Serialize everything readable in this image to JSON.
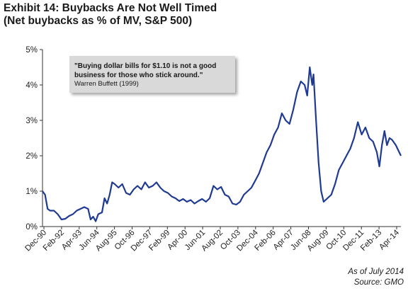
{
  "chart_data": {
    "type": "line",
    "title": "Exhibit 14: Buybacks Are Not Well Timed",
    "subtitle": "(Net buybacks as % of MV, S&P 500)",
    "xlabel": "",
    "ylabel": "",
    "x_tick_labels": [
      "Dec-90",
      "Feb-92",
      "Apr-93",
      "Jun-94",
      "Aug-95",
      "Oct-96",
      "Dec-97",
      "Feb-99",
      "Apr-00",
      "Jun-01",
      "Aug-02",
      "Oct-03",
      "Dec-04",
      "Feb-06",
      "Apr-07",
      "Jun-08",
      "Aug-09",
      "Oct-10",
      "Dec-11",
      "Feb-13",
      "Apr-14"
    ],
    "xlim": [
      "1990-12",
      "2014-07"
    ],
    "ylim": [
      0,
      5
    ],
    "y_tick_labels": [
      "0%",
      "1%",
      "2%",
      "3%",
      "4%",
      "5%"
    ],
    "y_ticks": [
      0,
      1,
      2,
      3,
      4,
      5
    ],
    "grid": false,
    "series": [
      {
        "color": "#1f3a93",
        "points": [
          [
            "1990-12",
            1.0
          ],
          [
            "1991-02",
            0.9
          ],
          [
            "1991-04",
            0.5
          ],
          [
            "1991-06",
            0.45
          ],
          [
            "1991-09",
            0.45
          ],
          [
            "1991-12",
            0.35
          ],
          [
            "1992-03",
            0.2
          ],
          [
            "1992-06",
            0.22
          ],
          [
            "1992-09",
            0.3
          ],
          [
            "1992-12",
            0.35
          ],
          [
            "1993-03",
            0.45
          ],
          [
            "1993-06",
            0.5
          ],
          [
            "1993-09",
            0.55
          ],
          [
            "1993-12",
            0.5
          ],
          [
            "1994-02",
            0.2
          ],
          [
            "1994-04",
            0.28
          ],
          [
            "1994-06",
            0.15
          ],
          [
            "1994-08",
            0.35
          ],
          [
            "1994-11",
            0.4
          ],
          [
            "1995-01",
            0.8
          ],
          [
            "1995-03",
            0.65
          ],
          [
            "1995-05",
            0.9
          ],
          [
            "1995-07",
            1.25
          ],
          [
            "1995-09",
            1.2
          ],
          [
            "1995-12",
            1.1
          ],
          [
            "1996-03",
            1.2
          ],
          [
            "1996-06",
            0.95
          ],
          [
            "1996-09",
            0.9
          ],
          [
            "1996-12",
            1.05
          ],
          [
            "1997-03",
            1.15
          ],
          [
            "1997-06",
            1.05
          ],
          [
            "1997-09",
            1.25
          ],
          [
            "1997-12",
            1.1
          ],
          [
            "1998-03",
            1.15
          ],
          [
            "1998-06",
            1.25
          ],
          [
            "1998-09",
            1.1
          ],
          [
            "1998-12",
            1.0
          ],
          [
            "1999-03",
            0.95
          ],
          [
            "1999-06",
            0.85
          ],
          [
            "1999-09",
            0.8
          ],
          [
            "1999-12",
            0.72
          ],
          [
            "2000-03",
            0.78
          ],
          [
            "2000-06",
            0.7
          ],
          [
            "2000-09",
            0.75
          ],
          [
            "2000-12",
            0.65
          ],
          [
            "2001-03",
            0.72
          ],
          [
            "2001-06",
            0.78
          ],
          [
            "2001-09",
            0.7
          ],
          [
            "2001-12",
            0.8
          ],
          [
            "2002-03",
            1.15
          ],
          [
            "2002-06",
            1.05
          ],
          [
            "2002-09",
            1.12
          ],
          [
            "2002-12",
            0.9
          ],
          [
            "2003-03",
            0.85
          ],
          [
            "2003-06",
            0.65
          ],
          [
            "2003-09",
            0.62
          ],
          [
            "2003-12",
            0.7
          ],
          [
            "2004-03",
            0.9
          ],
          [
            "2004-06",
            1.0
          ],
          [
            "2004-09",
            1.1
          ],
          [
            "2004-12",
            1.3
          ],
          [
            "2005-03",
            1.5
          ],
          [
            "2005-06",
            1.8
          ],
          [
            "2005-09",
            2.1
          ],
          [
            "2005-12",
            2.3
          ],
          [
            "2006-03",
            2.6
          ],
          [
            "2006-06",
            2.8
          ],
          [
            "2006-09",
            3.2
          ],
          [
            "2006-12",
            3.0
          ],
          [
            "2007-03",
            2.9
          ],
          [
            "2007-06",
            3.3
          ],
          [
            "2007-09",
            3.8
          ],
          [
            "2007-12",
            4.1
          ],
          [
            "2008-03",
            4.0
          ],
          [
            "2008-05",
            3.7
          ],
          [
            "2008-07",
            4.5
          ],
          [
            "2008-09",
            4.0
          ],
          [
            "2008-10",
            4.3
          ],
          [
            "2008-12",
            3.0
          ],
          [
            "2009-02",
            1.8
          ],
          [
            "2009-04",
            1.0
          ],
          [
            "2009-06",
            0.7
          ],
          [
            "2009-09",
            0.8
          ],
          [
            "2009-12",
            0.9
          ],
          [
            "2010-03",
            1.2
          ],
          [
            "2010-06",
            1.6
          ],
          [
            "2010-09",
            1.8
          ],
          [
            "2010-12",
            2.0
          ],
          [
            "2011-03",
            2.2
          ],
          [
            "2011-06",
            2.5
          ],
          [
            "2011-09",
            2.95
          ],
          [
            "2011-12",
            2.6
          ],
          [
            "2012-03",
            2.8
          ],
          [
            "2012-06",
            2.5
          ],
          [
            "2012-09",
            2.4
          ],
          [
            "2012-12",
            2.1
          ],
          [
            "2013-02",
            1.7
          ],
          [
            "2013-04",
            2.3
          ],
          [
            "2013-06",
            2.7
          ],
          [
            "2013-08",
            2.3
          ],
          [
            "2013-10",
            2.5
          ],
          [
            "2013-12",
            2.45
          ],
          [
            "2014-03",
            2.3
          ],
          [
            "2014-07",
            2.0
          ]
        ]
      }
    ]
  },
  "quote": {
    "text": "\"Buying dollar bills for $1.10 is not a good business for those who stick around.\"",
    "author": "Warren Buffett (1999)"
  },
  "footer": {
    "as_of": "As of July 2014",
    "source": "Source: GMO"
  }
}
